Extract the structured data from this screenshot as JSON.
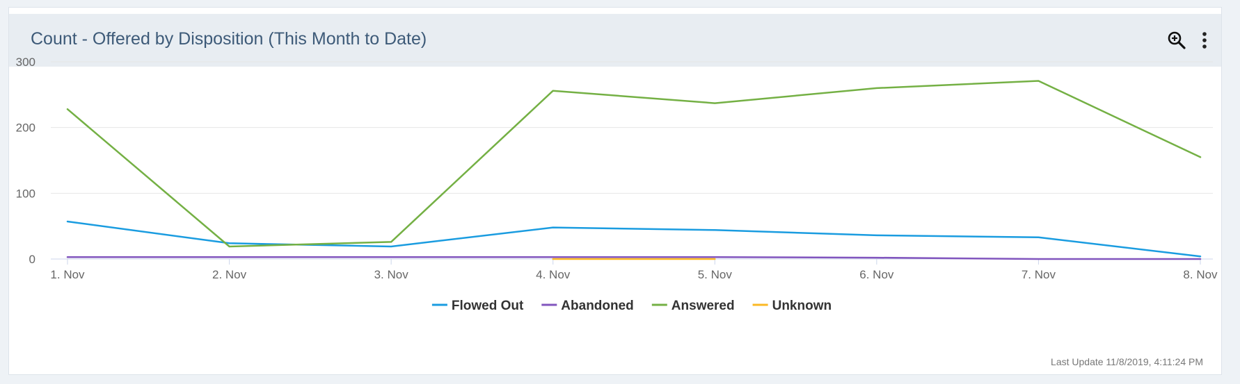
{
  "widget": {
    "title": "Count - Offered by Disposition (This Month to Date)",
    "zoom_icon": "zoom-in-icon",
    "menu_icon": "more-vertical-icon",
    "last_update": "Last Update 11/8/2019, 4:11:24 PM"
  },
  "chart_data": {
    "type": "line",
    "categories": [
      "1. Nov",
      "2. Nov",
      "3. Nov",
      "4. Nov",
      "5. Nov",
      "6. Nov",
      "7. Nov",
      "8. Nov"
    ],
    "yticks": [
      0,
      100,
      200,
      300
    ],
    "ylim": [
      0,
      300
    ],
    "grid": true,
    "legend": "bottom-center",
    "series": [
      {
        "name": "Flowed Out",
        "color": "#1a9ce0",
        "values": [
          57,
          24,
          19,
          48,
          44,
          36,
          33,
          4
        ]
      },
      {
        "name": "Abandoned",
        "color": "#8155be",
        "values": [
          3,
          3,
          3,
          3,
          3,
          2,
          0,
          0
        ]
      },
      {
        "name": "Answered",
        "color": "#74b044",
        "values": [
          228,
          19,
          26,
          256,
          237,
          260,
          271,
          155
        ]
      },
      {
        "name": "Unknown",
        "color": "#fbb824",
        "values": [
          null,
          null,
          null,
          0,
          0,
          null,
          null,
          null
        ]
      }
    ]
  }
}
